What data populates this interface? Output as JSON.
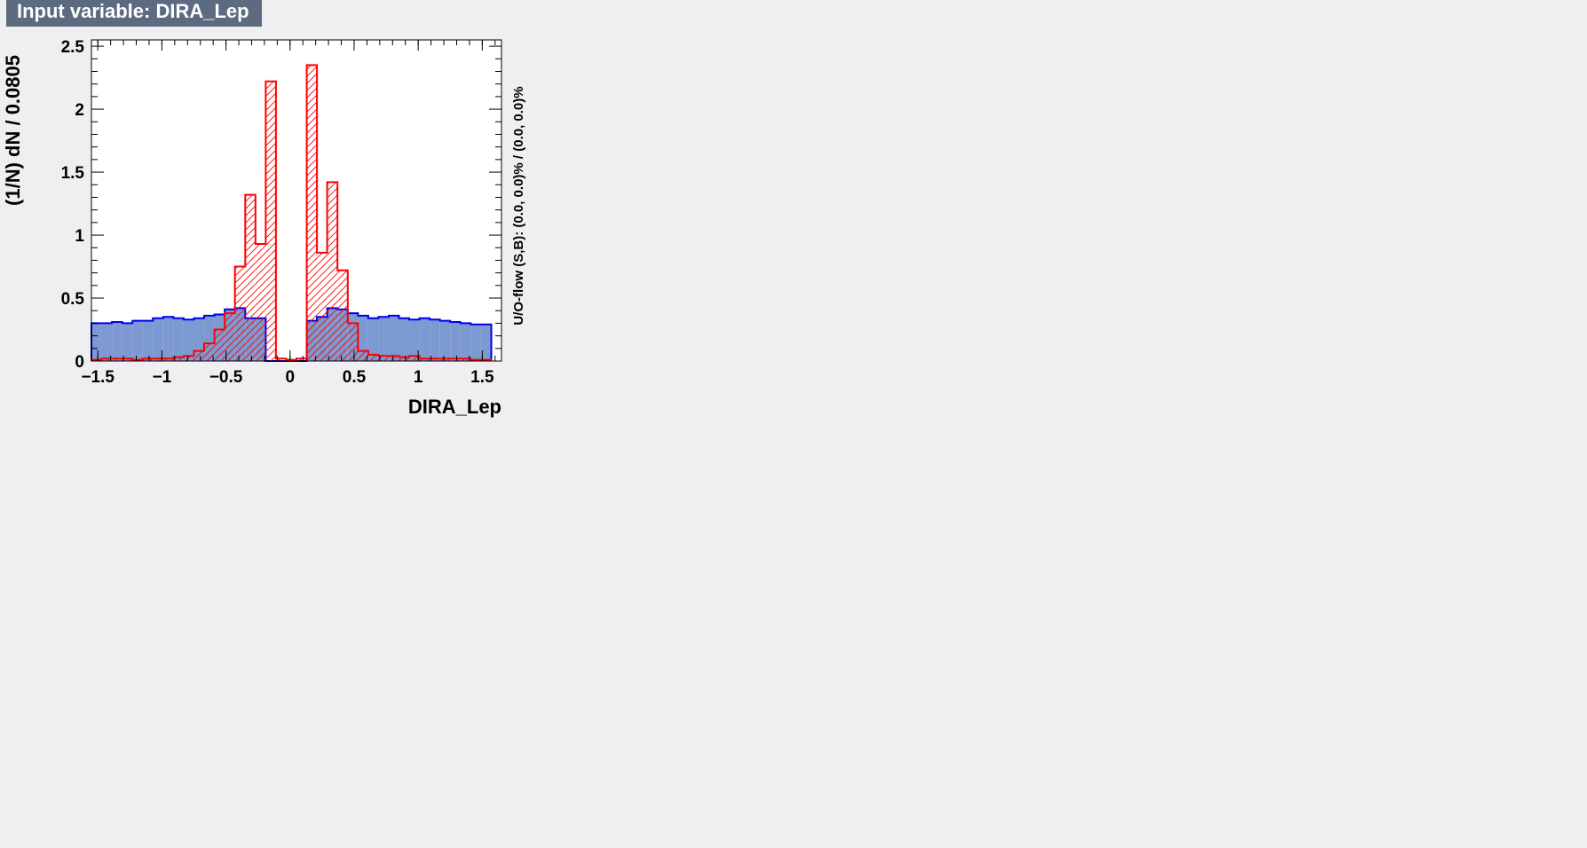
{
  "window": {
    "title": "Input variable: DIRA_Lep"
  },
  "chart_data": {
    "type": "histogram",
    "title": "Input variable: DIRA_Lep",
    "xlabel": "DIRA_Lep",
    "ylabel": "(1/N) dN / 0.0805",
    "right_label": "U/O-flow (S,B): (0.0, 0.0)% / (0.0, 0.0)%",
    "xlim": [
      -1.55,
      1.65
    ],
    "ylim": [
      0,
      2.55
    ],
    "bin_width": 0.0805,
    "x_ticks": [
      -1.5,
      -1,
      -0.5,
      0,
      0.5,
      1,
      1.5
    ],
    "x_tick_labels": [
      "−1.5",
      "−1",
      "−0.5",
      "0",
      "0.5",
      "1",
      "1.5"
    ],
    "y_ticks": [
      0,
      0.5,
      1,
      1.5,
      2,
      2.5
    ],
    "y_tick_labels": [
      "0",
      "0.5",
      "1",
      "1.5",
      "2",
      "2.5"
    ],
    "series": [
      {
        "role": "background",
        "style": "filled",
        "fill": "#7d99d1",
        "line": "#0000ee",
        "bin_edges": [
          -1.55,
          -1.47,
          -1.39,
          -1.31,
          -1.23,
          -1.15,
          -1.07,
          -0.99,
          -0.91,
          -0.83,
          -0.75,
          -0.67,
          -0.59,
          -0.51,
          -0.43,
          -0.35,
          -0.27,
          -0.19,
          -0.11,
          -0.03,
          0.05,
          0.13,
          0.21,
          0.29,
          0.37,
          0.45,
          0.53,
          0.61,
          0.69,
          0.77,
          0.85,
          0.93,
          1.01,
          1.09,
          1.17,
          1.25,
          1.33,
          1.41,
          1.49,
          1.57
        ],
        "values": [
          0.3,
          0.3,
          0.31,
          0.3,
          0.32,
          0.32,
          0.34,
          0.35,
          0.34,
          0.33,
          0.34,
          0.36,
          0.37,
          0.41,
          0.42,
          0.34,
          0.34,
          0,
          0,
          0,
          0,
          0.32,
          0.35,
          0.42,
          0.41,
          0.38,
          0.36,
          0.34,
          0.35,
          0.36,
          0.34,
          0.33,
          0.34,
          0.33,
          0.32,
          0.31,
          0.3,
          0.29,
          0.29
        ]
      },
      {
        "role": "signal",
        "style": "hatched",
        "line": "#ff0000",
        "bin_edges": [
          -1.55,
          -1.47,
          -1.39,
          -1.31,
          -1.23,
          -1.15,
          -1.07,
          -0.99,
          -0.91,
          -0.83,
          -0.75,
          -0.67,
          -0.59,
          -0.51,
          -0.43,
          -0.35,
          -0.27,
          -0.19,
          -0.11,
          -0.03,
          0.05,
          0.13,
          0.21,
          0.29,
          0.37,
          0.45,
          0.53,
          0.61,
          0.69,
          0.77,
          0.85,
          0.93,
          1.01,
          1.09,
          1.17,
          1.25,
          1.33,
          1.41,
          1.49,
          1.57
        ],
        "values": [
          0.01,
          0.02,
          0.02,
          0.02,
          0.01,
          0.02,
          0.02,
          0.02,
          0.03,
          0.04,
          0.08,
          0.14,
          0.25,
          0.38,
          0.75,
          1.32,
          0.93,
          2.22,
          0.02,
          0.01,
          0.02,
          2.35,
          0.86,
          1.42,
          0.72,
          0.3,
          0.08,
          0.05,
          0.04,
          0.04,
          0.03,
          0.04,
          0.02,
          0.02,
          0.02,
          0.02,
          0.02,
          0.01,
          0.01
        ]
      }
    ]
  }
}
